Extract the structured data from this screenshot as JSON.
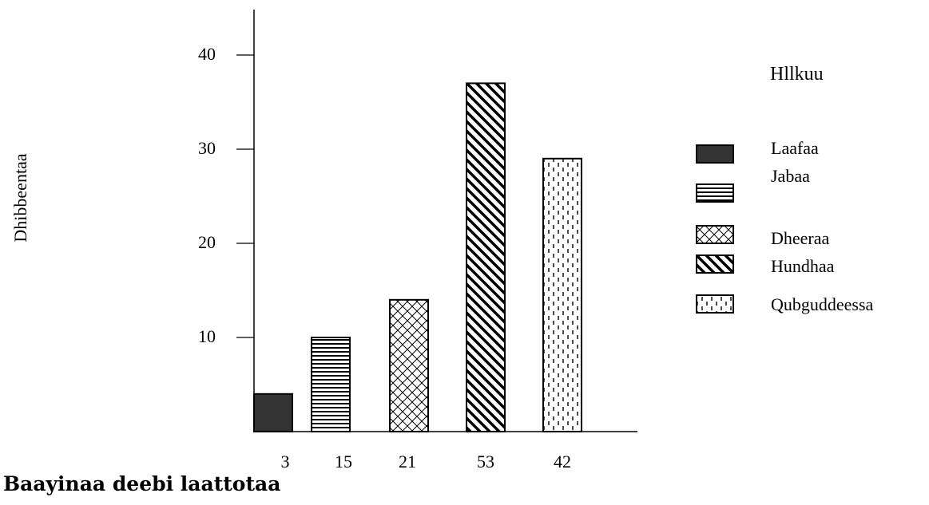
{
  "chart_data": {
    "type": "bar",
    "categories": [
      "3",
      "15",
      "21",
      "53",
      "42"
    ],
    "values": [
      4,
      10,
      14,
      37,
      29
    ],
    "series": [
      {
        "name": "Laafaa",
        "pattern": "solid",
        "value": 4
      },
      {
        "name": "Jabaa",
        "pattern": "horizontal-lines",
        "value": 10
      },
      {
        "name": "Dheeraa",
        "pattern": "crosshatch",
        "value": 14
      },
      {
        "name": "Hundhaa",
        "pattern": "diagonal-lines",
        "value": 37
      },
      {
        "name": "Qubguddeessa",
        "pattern": "dashed-vertical",
        "value": 29
      }
    ],
    "ylabel": "Dhibbeentaa",
    "yticks": [
      10,
      20,
      30,
      40
    ],
    "ylim": [
      0,
      50
    ],
    "legend_title": "Hllkuu",
    "legend_position": "right",
    "caption": "Baayinaa deebi laattotaa",
    "grid": false,
    "colors": {
      "ink": "#000000",
      "solid_fill": "#333333",
      "background": "#ffffff"
    }
  }
}
